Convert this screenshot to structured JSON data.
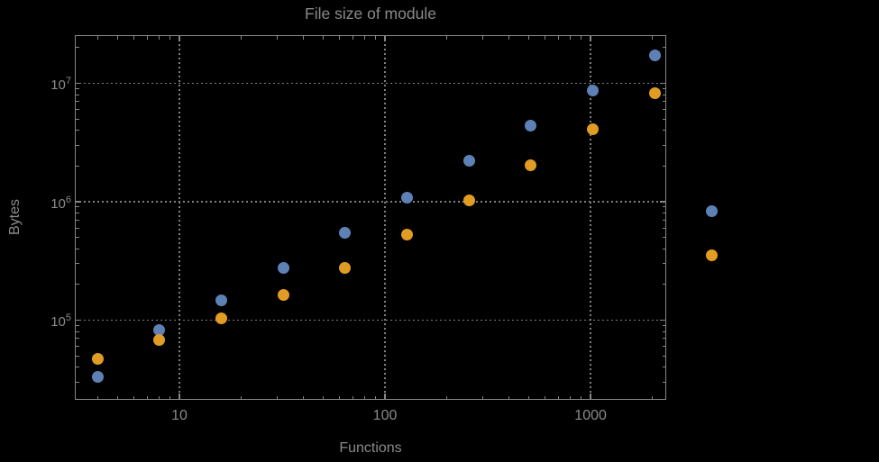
{
  "window": {
    "background_color": "#000000"
  },
  "chart_data": {
    "type": "scatter",
    "title": "File size of module",
    "xlabel": "Functions",
    "ylabel": "Bytes",
    "x_scale": "log",
    "y_scale": "log",
    "xlim": [
      3.1,
      2333
    ],
    "ylim": [
      21200,
      25500000
    ],
    "x_major_ticks": [
      10,
      100,
      1000
    ],
    "x_major_tick_labels": [
      "10",
      "100",
      "1000"
    ],
    "y_major_ticks": [
      100000,
      1000000,
      10000000
    ],
    "y_major_tick_exponents": [
      5,
      6,
      7
    ],
    "y_tick_base": "10",
    "grid": {
      "style": "dotted",
      "on": true,
      "x_lines": [
        10,
        100,
        1000
      ],
      "y_lines": [
        100000,
        1000000,
        10000000
      ]
    },
    "frame_color": "#868686",
    "grid_color": "#7e7e7e",
    "text_color": "#8a8a8a",
    "series": [
      {
        "name": "series-1-blue",
        "marker": "circle",
        "color": "#5e81b5",
        "x": [
          4,
          8,
          16,
          32,
          64,
          128,
          256,
          512,
          1024,
          2048
        ],
        "y": [
          33000,
          83000,
          148000,
          276000,
          550000,
          1090000,
          2200000,
          4400000,
          8700000,
          17200000
        ]
      },
      {
        "name": "series-2-orange",
        "marker": "circle",
        "color": "#e19c24",
        "x": [
          4,
          8,
          16,
          32,
          64,
          128,
          256,
          512,
          1024,
          2048
        ],
        "y": [
          47000,
          68000,
          104000,
          163000,
          276000,
          530000,
          1020000,
          2040000,
          4100000,
          8200000
        ]
      }
    ],
    "legend": {
      "position": "outside-right",
      "entries": [
        {
          "label": "",
          "color": "#5e81b5"
        },
        {
          "label": "",
          "color": "#e19c24"
        }
      ]
    }
  }
}
